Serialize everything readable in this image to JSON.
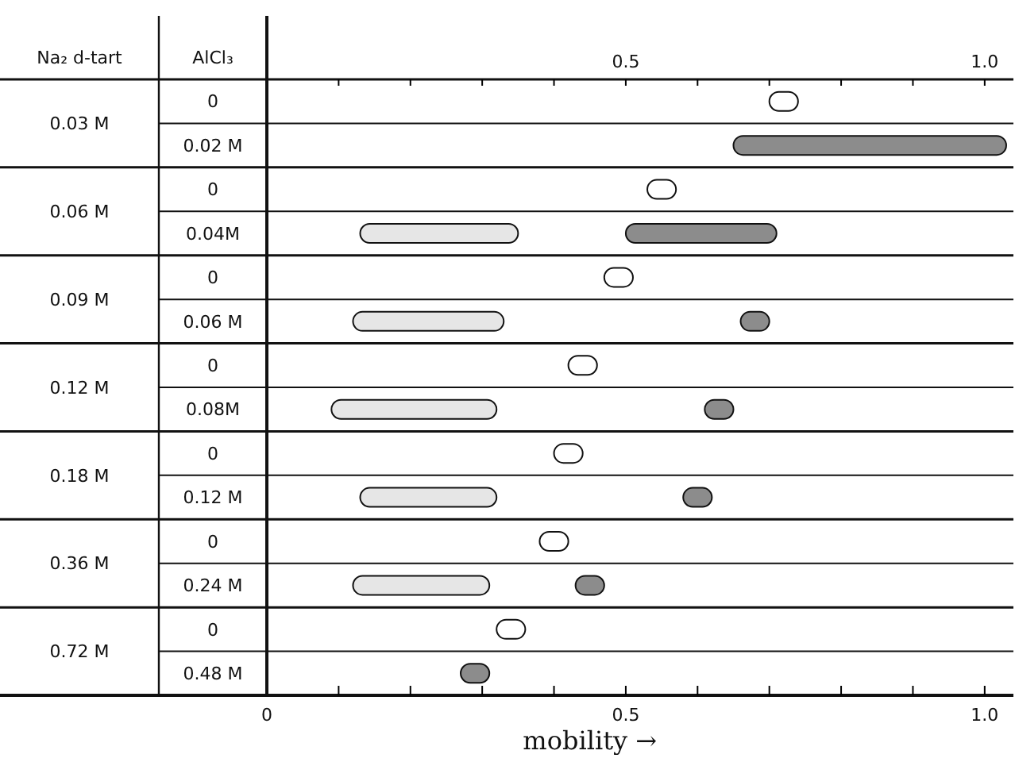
{
  "chart_data": {
    "type": "bar",
    "orientation": "horizontal",
    "categories": [
      "0",
      "0.02 M",
      "0",
      "0.04M",
      "0",
      "0.06 M",
      "0",
      "0.08M",
      "0",
      "0.12 M",
      "0",
      "0.24 M",
      "0",
      "0.48 M"
    ],
    "ylabel": "AlCl₃",
    "xlabel": "mobility →",
    "annotations": [
      "Na₂ d-tart",
      "0.03 M",
      "0.06 M",
      "0.09 M",
      "0.12 M",
      "0.18 M",
      "0.36 M",
      "0.72 M"
    ],
    "xlim": [
      0,
      1.04
    ],
    "xticks": [
      0,
      {
        "value": 0.1,
        "label": null
      },
      {
        "value": 0.2,
        "label": null
      },
      {
        "value": 0.3,
        "label": null
      },
      {
        "value": 0.4,
        "label": null
      },
      {
        "value": 0.5,
        "label": "0.5"
      },
      {
        "value": 0.6,
        "label": null
      },
      {
        "value": 0.7,
        "label": null
      },
      {
        "value": 0.8,
        "label": null
      },
      {
        "value": 0.9,
        "label": null
      },
      {
        "value": 1.0,
        "label": "1.0"
      }
    ],
    "x2lim": [
      0,
      1.04
    ],
    "x2ticks": [
      {
        "value": 0.1,
        "label": null
      },
      {
        "value": 0.2,
        "label": null
      },
      {
        "value": 0.3,
        "label": null
      },
      {
        "value": 0.4,
        "label": null
      },
      {
        "value": 0.5,
        "label": "0.5"
      },
      {
        "value": 0.6,
        "label": null
      },
      {
        "value": 0.7,
        "label": null
      },
      {
        "value": 0.8,
        "label": null
      },
      {
        "value": 0.9,
        "label": null
      },
      {
        "value": 1.0,
        "label": "1.0"
      }
    ],
    "grid": "y",
    "series": [
      {
        "color": "#ffffff",
        "base": [
          0.7,
          null,
          0.53,
          null,
          0.47,
          null,
          0.42,
          null,
          0.4,
          null,
          0.38,
          null,
          0.32,
          null
        ],
        "values": [
          0.04,
          null,
          0.04,
          null,
          0.04,
          null,
          0.04,
          null,
          0.04,
          null,
          0.04,
          null,
          0.04,
          null
        ]
      },
      {
        "color": "#e6e6e6",
        "base": [
          null,
          null,
          null,
          0.13,
          null,
          0.12,
          null,
          0.09,
          null,
          0.13,
          null,
          0.12,
          null,
          null
        ],
        "values": [
          null,
          null,
          null,
          0.22,
          null,
          0.21,
          null,
          0.23,
          null,
          0.19,
          null,
          0.19,
          null,
          null
        ]
      },
      {
        "color": "#8c8c8c",
        "base": [
          null,
          0.65,
          null,
          0.5,
          null,
          0.66,
          null,
          0.61,
          null,
          0.58,
          null,
          0.43,
          null,
          0.27
        ],
        "values": [
          null,
          0.38,
          null,
          0.21,
          null,
          0.04,
          null,
          0.04,
          null,
          0.04,
          null,
          0.04,
          null,
          0.04
        ]
      }
    ]
  }
}
